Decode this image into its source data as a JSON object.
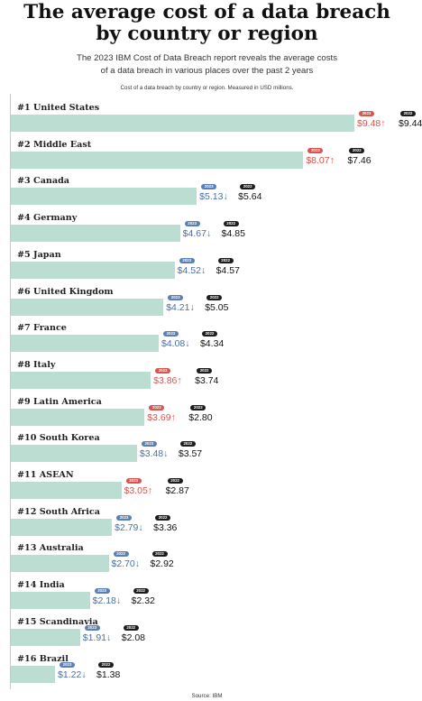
{
  "title_line1": "The average cost of a data breach",
  "title_line2": "by country or region",
  "subtitle_line1": "The 2023 IBM Cost of Data Breach report reveals the average costs",
  "subtitle_line2": "of a data breach in various places over the past 2 years",
  "note": "Cost of a data breach by country or region. Measured in USD millions.",
  "source": "Source: IBM",
  "colors": {
    "bar": "#bcded2",
    "increase": "#d9534f",
    "decrease": "#5a7fb5",
    "label_2022": "#1c1c1c"
  },
  "chart_data": {
    "type": "bar",
    "orientation": "horizontal",
    "title": "The average cost of a data breach by country or region",
    "unit": "USD millions",
    "series": [
      {
        "name": "2023",
        "values": [
          9.48,
          8.07,
          5.13,
          4.67,
          4.52,
          4.21,
          4.08,
          3.86,
          3.69,
          3.48,
          3.05,
          2.79,
          2.7,
          2.18,
          1.91,
          1.22
        ]
      },
      {
        "name": "2022",
        "values": [
          9.44,
          7.46,
          5.64,
          4.85,
          4.57,
          5.05,
          4.34,
          3.74,
          2.8,
          3.57,
          2.87,
          3.36,
          2.92,
          2.32,
          2.08,
          1.38
        ]
      }
    ],
    "rows": [
      {
        "label": "#1 United States",
        "v2023": 9.48,
        "v2022": 9.44,
        "text2023": "$9.48",
        "text2022": "$9.44",
        "trend": "up",
        "arrow": "↑"
      },
      {
        "label": "#2 Middle East",
        "v2023": 8.07,
        "v2022": 7.46,
        "text2023": "$8.07",
        "text2022": "$7.46",
        "trend": "up",
        "arrow": "↑"
      },
      {
        "label": "#3 Canada",
        "v2023": 5.13,
        "v2022": 5.64,
        "text2023": "$5.13",
        "text2022": "$5.64",
        "trend": "down",
        "arrow": "↓"
      },
      {
        "label": "#4 Germany",
        "v2023": 4.67,
        "v2022": 4.85,
        "text2023": "$4.67",
        "text2022": "$4.85",
        "trend": "down",
        "arrow": "↓"
      },
      {
        "label": "#5 Japan",
        "v2023": 4.52,
        "v2022": 4.57,
        "text2023": "$4.52",
        "text2022": "$4.57",
        "trend": "down",
        "arrow": "↓"
      },
      {
        "label": "#6 United Kingdom",
        "v2023": 4.21,
        "v2022": 5.05,
        "text2023": "$4.21",
        "text2022": "$5.05",
        "trend": "down",
        "arrow": "↓"
      },
      {
        "label": "#7 France",
        "v2023": 4.08,
        "v2022": 4.34,
        "text2023": "$4.08",
        "text2022": "$4.34",
        "trend": "down",
        "arrow": "↓"
      },
      {
        "label": "#8 Italy",
        "v2023": 3.86,
        "v2022": 3.74,
        "text2023": "$3.86",
        "text2022": "$3.74",
        "trend": "up",
        "arrow": "↑"
      },
      {
        "label": "#9 Latin America",
        "v2023": 3.69,
        "v2022": 2.8,
        "text2023": "$3.69",
        "text2022": "$2.80",
        "trend": "up",
        "arrow": "↑"
      },
      {
        "label": "#10 South Korea",
        "v2023": 3.48,
        "v2022": 3.57,
        "text2023": "$3.48",
        "text2022": "$3.57",
        "trend": "down",
        "arrow": "↓"
      },
      {
        "label": "#11 ASEAN",
        "v2023": 3.05,
        "v2022": 2.87,
        "text2023": "$3.05",
        "text2022": "$2.87",
        "trend": "up",
        "arrow": "↑"
      },
      {
        "label": "#12 South Africa",
        "v2023": 2.79,
        "v2022": 3.36,
        "text2023": "$2.79",
        "text2022": "$3.36",
        "trend": "down",
        "arrow": "↓"
      },
      {
        "label": "#13 Australia",
        "v2023": 2.7,
        "v2022": 2.92,
        "text2023": "$2.70",
        "text2022": "$2.92",
        "trend": "down",
        "arrow": "↓"
      },
      {
        "label": "#14 India",
        "v2023": 2.18,
        "v2022": 2.32,
        "text2023": "$2.18",
        "text2022": "$2.32",
        "trend": "down",
        "arrow": "↓"
      },
      {
        "label": "#15 Scandinavia",
        "v2023": 1.91,
        "v2022": 2.08,
        "text2023": "$1.91",
        "text2022": "$2.08",
        "trend": "down",
        "arrow": "↓"
      },
      {
        "label": "#16 Brazil",
        "v2023": 1.22,
        "v2022": 1.38,
        "text2023": "$1.22",
        "text2022": "$1.38",
        "trend": "down",
        "arrow": "↓"
      }
    ],
    "legend_2023": "2023",
    "legend_2022": "2022"
  }
}
